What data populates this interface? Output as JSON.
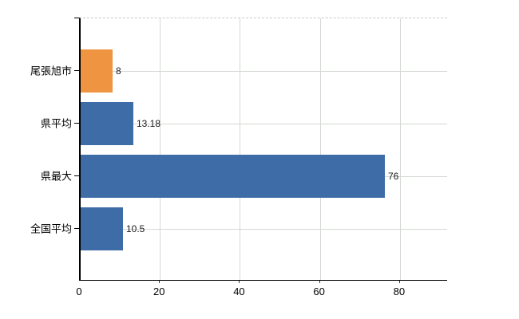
{
  "chart_data": {
    "type": "bar",
    "orientation": "horizontal",
    "title": "",
    "xlabel": "",
    "ylabel": "",
    "categories": [
      "尾張旭市",
      "県平均",
      "県最大",
      "全国平均"
    ],
    "values": [
      8,
      13.18,
      76,
      10.5
    ],
    "value_labels": [
      "8",
      "13.18",
      "76",
      "10.5"
    ],
    "bar_colors": [
      "#ef9440",
      "#3d6ca6",
      "#3d6ca6",
      "#3d6ca6"
    ],
    "x_ticks": [
      0,
      20,
      40,
      60,
      80
    ],
    "x_tick_labels": [
      "0",
      "20",
      "40",
      "60",
      "80"
    ],
    "xlim": [
      0,
      92
    ],
    "grid": true,
    "legend": "none"
  },
  "colors": {
    "background": "#ffffff",
    "grid": "#d4d9d3",
    "axis": "#000000",
    "value_text": "#1a1a1a",
    "category_text": "#000000",
    "orange_accent": "#ef9440",
    "blue_accent": "#3d6ca6"
  }
}
